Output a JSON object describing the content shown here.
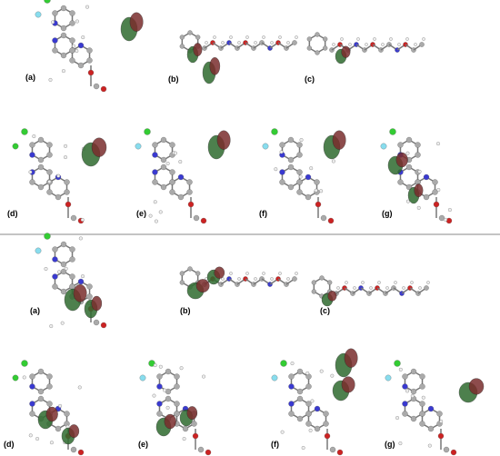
{
  "top_panel": {
    "labels": [
      "(a)",
      "(b)",
      "(c)",
      "(d)",
      "(e)",
      "(f)",
      "(g)"
    ]
  },
  "bottom_panel": {
    "labels": [
      "(a)",
      "(b)",
      "(c)",
      "(d)",
      "(e)",
      "(f)",
      "(g)"
    ]
  }
}
